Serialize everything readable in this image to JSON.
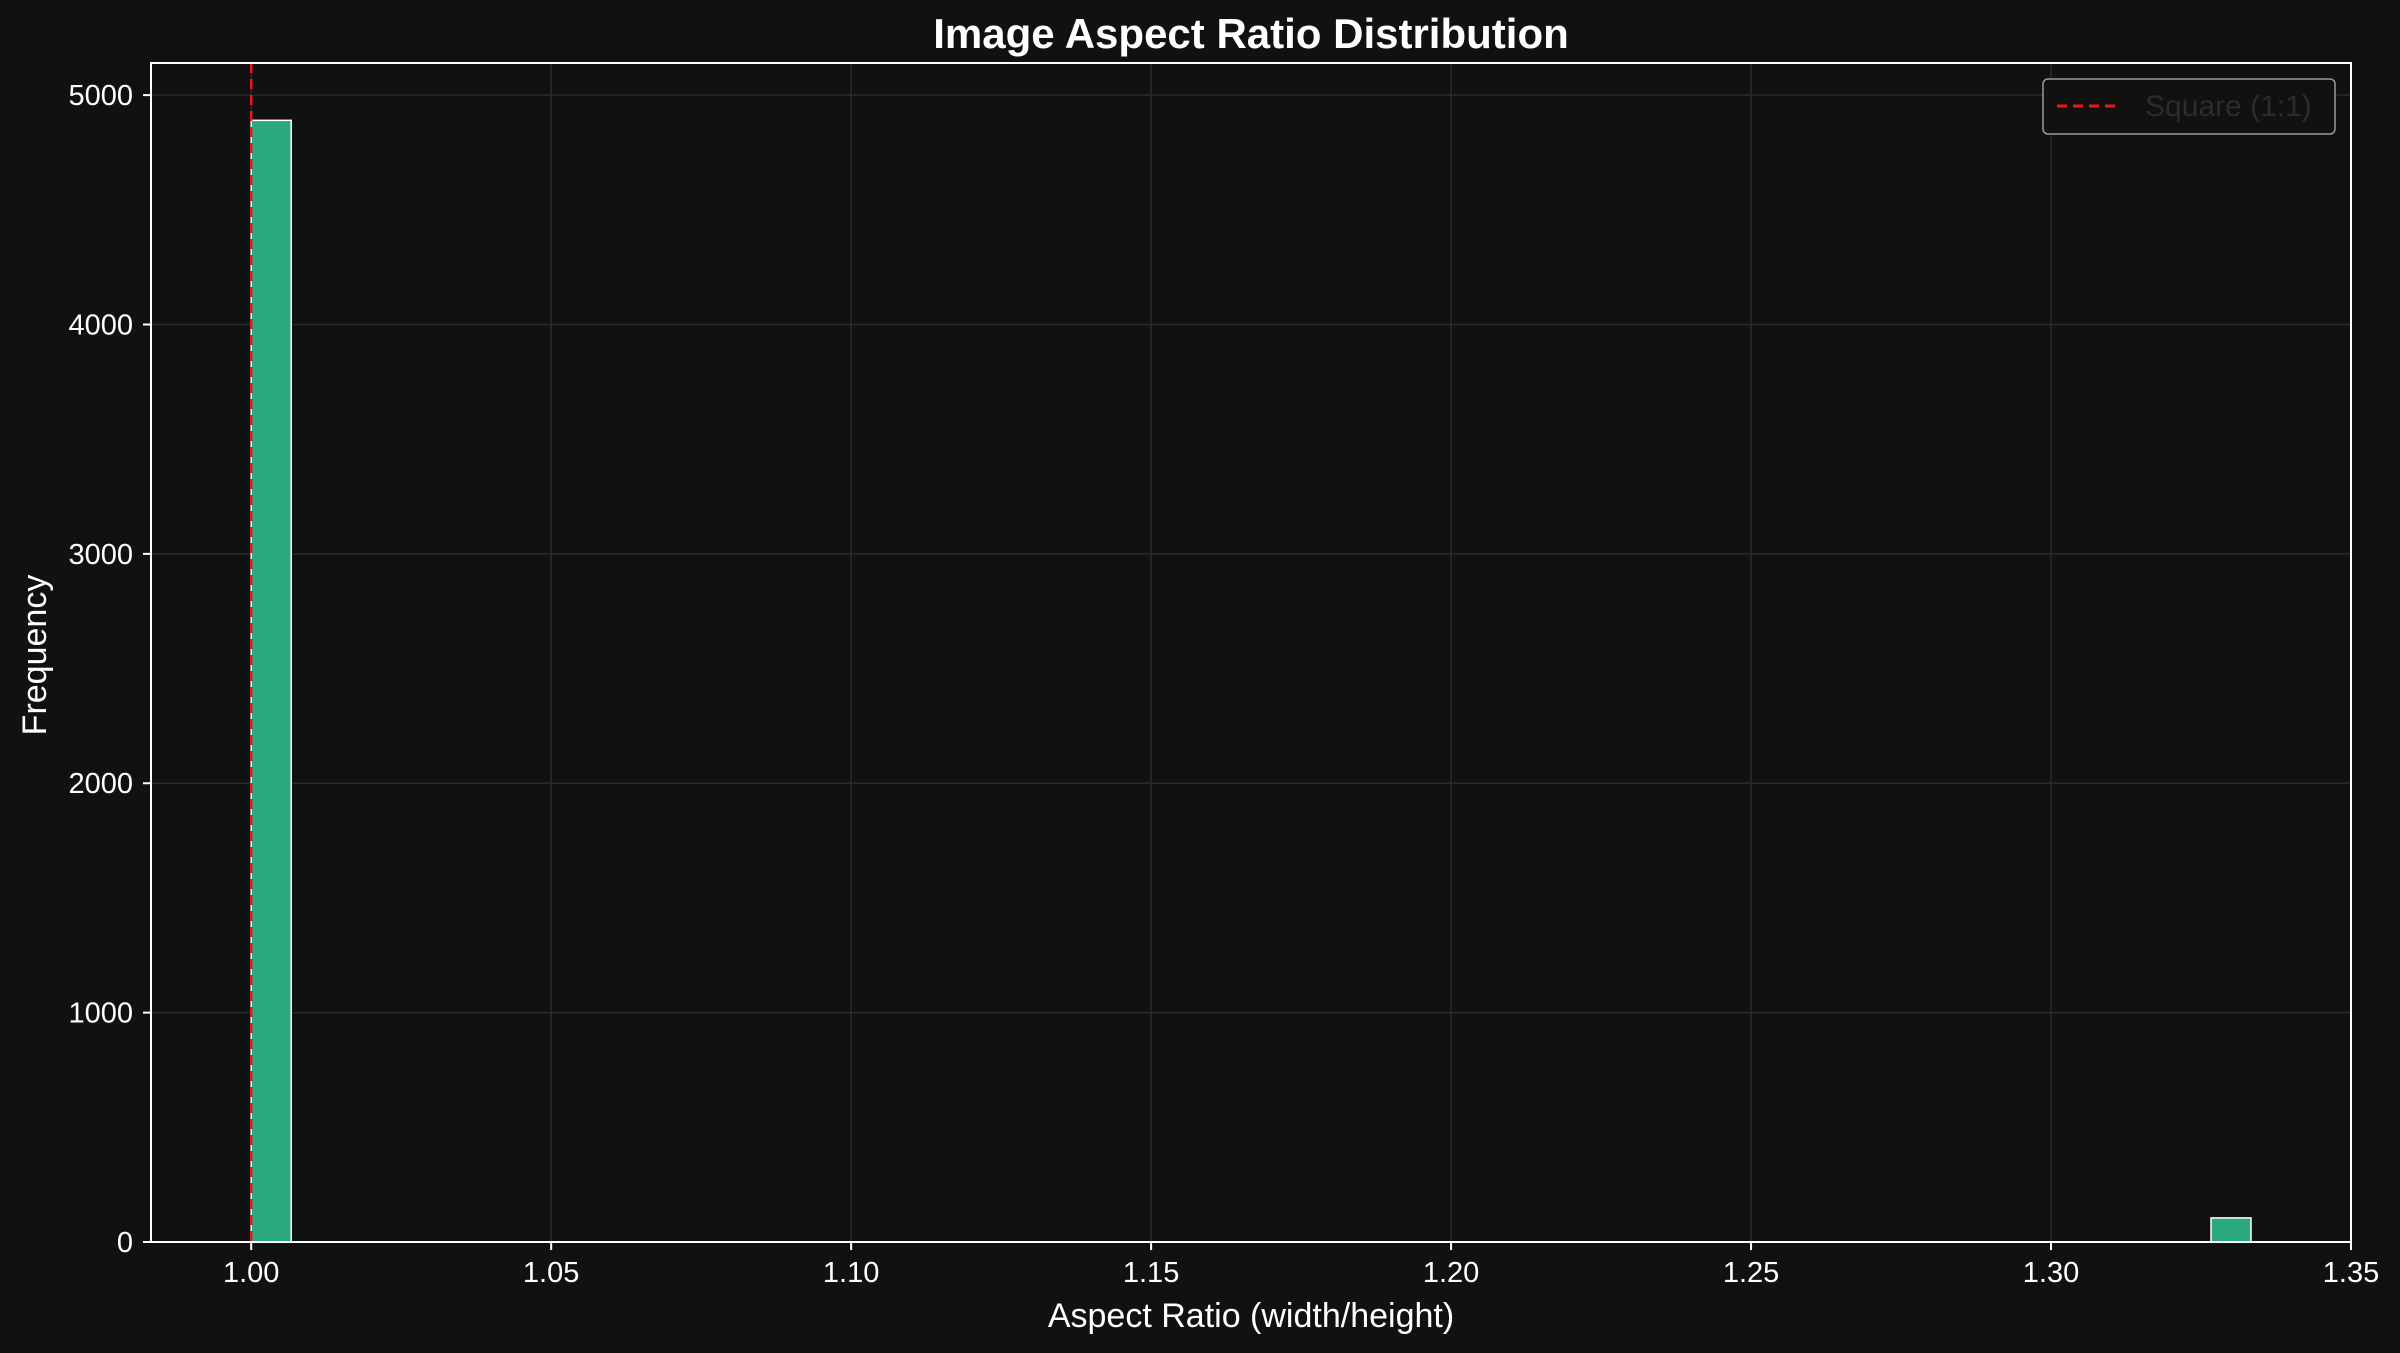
{
  "chart_data": {
    "type": "bar",
    "title": "Image Aspect Ratio Distribution",
    "xlabel": "Aspect Ratio (width/height)",
    "ylabel": "Frequency",
    "xlim": [
      0.9833,
      1.35
    ],
    "ylim": [
      0,
      5140
    ],
    "xticks": [
      "1.00",
      "1.05",
      "1.10",
      "1.15",
      "1.20",
      "1.25",
      "1.30",
      "1.35"
    ],
    "xtick_values": [
      1.0,
      1.05,
      1.1,
      1.15,
      1.2,
      1.25,
      1.3,
      1.35
    ],
    "yticks": [
      "0",
      "1000",
      "2000",
      "3000",
      "4000",
      "5000"
    ],
    "ytick_values": [
      0,
      1000,
      2000,
      3000,
      4000,
      5000
    ],
    "bars": [
      {
        "x0": 1.0,
        "x1": 1.00667,
        "value": 4890
      },
      {
        "x0": 1.32667,
        "x1": 1.33333,
        "value": 105
      }
    ],
    "reference_line": {
      "x": 1.0,
      "label": "Square (1:1)",
      "color": "#e31a1c",
      "style": "dashed"
    },
    "bar_color": "#2ca87f",
    "bar_edge_color": "#ffffff",
    "background": "#111111",
    "grid": true,
    "legend": {
      "placement": "top-right",
      "entries": [
        "Square (1:1)"
      ]
    }
  }
}
